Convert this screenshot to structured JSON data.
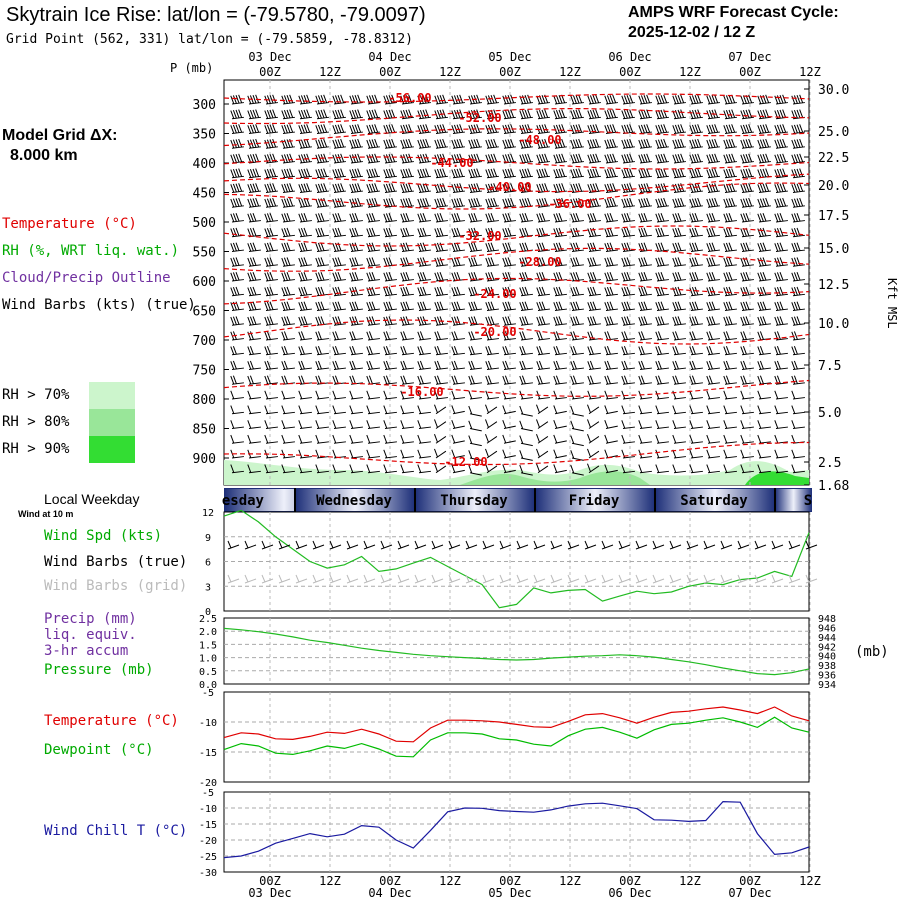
{
  "header": {
    "title": "Skytrain Ice Rise:  lat/lon = (-79.5780, -79.0097)",
    "subtitle": "Grid Point (562, 331) lat/lon = (-79.5859, -78.8312)",
    "forecast_label": "AMPS WRF Forecast Cycle:",
    "forecast_cycle": "2025-12-02 / 12  Z",
    "grid_label": "Model Grid ΔX:",
    "grid_value": "8.000 km"
  },
  "colors": {
    "temperature": "#e00000",
    "rh": "#00aa00",
    "cloud": "#7030a0",
    "pressure_line": "#22bb22",
    "windchill": "#1a1aa0",
    "rh70": "#ccf5cc",
    "rh80": "#99e699",
    "rh90": "#33dd33",
    "day_band": "#1c2e78"
  },
  "legend": {
    "temperature": "Temperature (°C)",
    "rh": "RH (%, WRT liq. wat.)",
    "cloud": "Cloud/Precip Outline",
    "wind": "Wind Barbs (kts) (true)",
    "rh70": "RH > 70%",
    "rh80": "RH > 80%",
    "rh90": "RH > 90%",
    "local_weekday": "Local Weekday",
    "wind_at": "Wind at 10 m",
    "wind_spd": "Wind Spd (kts)",
    "wind_barbs_true": "Wind Barbs (true)",
    "wind_barbs_grid": "Wind Barbs (grid)",
    "precip": "Precip (mm)",
    "liq": "liq. equiv.",
    "accum": "3-hr accum",
    "pressure": "Pressure (mb)",
    "temp2": "Temperature (°C)",
    "dewpoint": "Dewpoint (°C)",
    "windchill": "Wind Chill T (°C)",
    "mb_unit": "(mb)"
  },
  "axes": {
    "p_label": "P (mb)",
    "kft_label": "Kft MSL",
    "time_ticks": [
      "00Z",
      "12Z",
      "00Z",
      "12Z",
      "00Z",
      "12Z",
      "00Z",
      "12Z",
      "00Z",
      "12Z"
    ],
    "date_ticks": [
      "03 Dec",
      "04 Dec",
      "05 Dec",
      "06 Dec",
      "07 Dec"
    ],
    "weekdays": [
      "esday",
      "Wednesday",
      "Thursday",
      "Friday",
      "Saturday",
      "S"
    ]
  },
  "chart_data": [
    {
      "type": "area",
      "name": "vertical_cross_section",
      "y_pressure_ticks": [
        "300",
        "350",
        "400",
        "450",
        "500",
        "550",
        "600",
        "650",
        "700",
        "750",
        "800",
        "850",
        "900"
      ],
      "y_kft_ticks": [
        "30.0",
        "25.0",
        "22.5",
        "20.0",
        "17.5",
        "15.0",
        "12.5",
        "10.0",
        "7.5",
        "5.0",
        "2.5",
        "1.68"
      ],
      "temperature_contour_labels": [
        "-56.00",
        "-52.00",
        "-48.00",
        "-44.00",
        "-40.00",
        "-36.00",
        "-32.00",
        "-28.00",
        "-24.00",
        "-20.00",
        "-16.00",
        "-12.00"
      ]
    },
    {
      "type": "line",
      "name": "wind_speed_10m",
      "yticks": [
        "12",
        "9",
        "6",
        "3",
        "0"
      ],
      "ylim": [
        0,
        12
      ],
      "x_hours": [
        0,
        3,
        6,
        9,
        12,
        15,
        18,
        21,
        24,
        27,
        30,
        33,
        36,
        39,
        42,
        45,
        48,
        51,
        54,
        57,
        60,
        63,
        66,
        69,
        72,
        75,
        78,
        81,
        84,
        87,
        90,
        93,
        96,
        99,
        102
      ],
      "values": [
        11.5,
        12.2,
        10.8,
        9.0,
        7.5,
        6.0,
        5.2,
        5.6,
        6.6,
        4.8,
        5.1,
        5.8,
        6.5,
        5.4,
        4.3,
        3.2,
        0.4,
        0.8,
        2.8,
        2.2,
        2.5,
        2.6,
        1.2,
        1.8,
        2.4,
        2.1,
        2.3,
        3.0,
        3.4,
        3.2,
        3.8,
        4.0,
        4.8,
        4.2,
        9.5
      ]
    },
    {
      "type": "line",
      "name": "precip_pressure",
      "yticks_left": [
        "2.5",
        "2.0",
        "1.5",
        "1.0",
        "0.5",
        "0.0"
      ],
      "yticks_right": [
        "948",
        "946",
        "944",
        "942",
        "940",
        "938",
        "936",
        "934"
      ],
      "ylim_right": [
        934,
        948
      ],
      "x_hours": [
        0,
        3,
        6,
        9,
        12,
        15,
        18,
        21,
        24,
        27,
        30,
        33,
        36,
        39,
        42,
        45,
        48,
        51,
        54,
        57,
        60,
        63,
        66,
        69,
        72,
        75,
        78,
        81,
        84,
        87,
        90,
        93,
        96,
        99,
        102
      ],
      "pressure": [
        945.8,
        945.5,
        945.1,
        944.6,
        944.0,
        943.3,
        942.8,
        942.2,
        941.6,
        941.1,
        940.7,
        940.3,
        940.0,
        939.8,
        939.6,
        939.4,
        939.2,
        939.1,
        939.2,
        939.5,
        939.7,
        939.9,
        940.0,
        940.2,
        940.0,
        939.7,
        939.2,
        938.7,
        938.1,
        937.4,
        936.8,
        936.2,
        936.0,
        936.4,
        937.2
      ]
    },
    {
      "type": "line",
      "name": "temperature_dewpoint",
      "yticks": [
        "-5",
        "-10",
        "-15",
        "-20"
      ],
      "ylim": [
        -20,
        -5
      ],
      "x_hours": [
        0,
        3,
        6,
        9,
        12,
        15,
        18,
        21,
        24,
        27,
        30,
        33,
        36,
        39,
        42,
        45,
        48,
        51,
        54,
        57,
        60,
        63,
        66,
        69,
        72,
        75,
        78,
        81,
        84,
        87,
        90,
        93,
        96,
        99,
        102
      ],
      "series": [
        {
          "name": "Temperature (°C)",
          "values": [
            -12.6,
            -11.8,
            -12.0,
            -12.8,
            -12.9,
            -12.4,
            -11.7,
            -11.9,
            -11.2,
            -12.0,
            -13.2,
            -13.3,
            -11.0,
            -9.7,
            -9.7,
            -9.8,
            -10.0,
            -10.4,
            -10.8,
            -10.9,
            -9.9,
            -8.8,
            -8.6,
            -9.3,
            -10.2,
            -9.2,
            -8.4,
            -8.2,
            -7.8,
            -7.5,
            -8.0,
            -8.6,
            -7.5,
            -9.0,
            -9.8
          ]
        },
        {
          "name": "Dewpoint (°C)",
          "values": [
            -14.6,
            -13.6,
            -14.0,
            -15.2,
            -15.4,
            -14.8,
            -14.0,
            -14.4,
            -13.6,
            -14.5,
            -15.7,
            -15.8,
            -13.0,
            -11.8,
            -11.8,
            -12.0,
            -12.8,
            -13.0,
            -13.7,
            -14.0,
            -12.3,
            -11.2,
            -10.9,
            -11.7,
            -12.7,
            -11.3,
            -10.4,
            -10.2,
            -9.7,
            -9.3,
            -10.0,
            -10.9,
            -9.2,
            -11.0,
            -11.7
          ]
        }
      ]
    },
    {
      "type": "line",
      "name": "wind_chill",
      "yticks": [
        "-5",
        "-10",
        "-15",
        "-20",
        "-25",
        "-30"
      ],
      "ylim": [
        -30,
        -5
      ],
      "x_hours": [
        0,
        3,
        6,
        9,
        12,
        15,
        18,
        21,
        24,
        27,
        30,
        33,
        36,
        39,
        42,
        45,
        48,
        51,
        54,
        57,
        60,
        63,
        66,
        69,
        72,
        75,
        78,
        81,
        84,
        87,
        90,
        93,
        96,
        99,
        102
      ],
      "series": [
        {
          "name": "Wind Chill T (°C)",
          "values": [
            -25.5,
            -25.0,
            -23.5,
            -21.0,
            -19.5,
            -18.0,
            -19.0,
            -18.2,
            -15.5,
            -16.0,
            -20.0,
            -22.5,
            -17.0,
            -11.2,
            -10.0,
            -10.1,
            -10.8,
            -11.1,
            -11.3,
            -10.6,
            -9.4,
            -8.7,
            -8.5,
            -9.3,
            -10.2,
            -13.7,
            -13.8,
            -14.2,
            -13.9,
            -8.0,
            -8.2,
            -18.0,
            -24.5,
            -24.0,
            -22.2
          ]
        }
      ]
    }
  ]
}
